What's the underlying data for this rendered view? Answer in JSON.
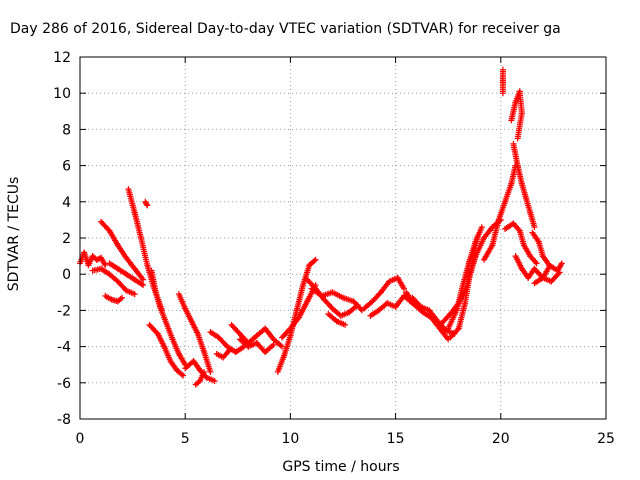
{
  "chart_data": {
    "type": "scatter",
    "title": "Day 286 of 2016, Sidereal Day-to-day VTEC variation (SDTVAR) for receiver ga",
    "xlabel": "GPS time / hours",
    "ylabel": "SDTVAR / TECUs",
    "xlim": [
      0,
      25
    ],
    "ylim": [
      -8,
      12
    ],
    "xticks": [
      "0",
      "5",
      "10",
      "15",
      "20",
      "25"
    ],
    "yticks": [
      "-8",
      "-6",
      "-4",
      "-2",
      "0",
      "2",
      "4",
      "6",
      "8",
      "10",
      "12"
    ],
    "grid": true,
    "marker": "+",
    "color": "#ff0000",
    "series": [
      {
        "name": "SDTVAR",
        "segments": [
          [
            [
              0.0,
              0.6
            ],
            [
              0.2,
              1.2
            ],
            [
              0.4,
              0.5
            ],
            [
              0.6,
              1.0
            ],
            [
              0.8,
              0.8
            ],
            [
              1.0,
              0.9
            ],
            [
              1.2,
              0.5
            ]
          ],
          [
            [
              1.0,
              2.9
            ],
            [
              1.4,
              2.4
            ],
            [
              1.8,
              1.6
            ],
            [
              2.2,
              0.9
            ],
            [
              2.6,
              0.3
            ],
            [
              3.0,
              -0.3
            ]
          ],
          [
            [
              0.6,
              0.2
            ],
            [
              1.0,
              0.3
            ],
            [
              1.4,
              0.0
            ],
            [
              1.8,
              -0.4
            ],
            [
              2.2,
              -0.9
            ],
            [
              2.6,
              -1.1
            ]
          ],
          [
            [
              1.2,
              -1.2
            ],
            [
              1.5,
              -1.4
            ],
            [
              1.8,
              -1.5
            ],
            [
              2.0,
              -1.3
            ]
          ],
          [
            [
              1.4,
              0.6
            ],
            [
              1.8,
              0.3
            ],
            [
              2.2,
              0.0
            ],
            [
              2.6,
              -0.3
            ],
            [
              3.0,
              -0.6
            ]
          ],
          [
            [
              2.3,
              4.7
            ],
            [
              2.6,
              3.4
            ],
            [
              2.9,
              2.0
            ],
            [
              3.2,
              0.5
            ],
            [
              3.5,
              -0.7
            ],
            [
              3.9,
              -2.0
            ]
          ],
          [
            [
              3.1,
              4.0
            ],
            [
              3.2,
              3.8
            ]
          ],
          [
            [
              3.4,
              0.2
            ],
            [
              3.6,
              -1.0
            ],
            [
              3.8,
              -1.8
            ],
            [
              4.1,
              -2.7
            ],
            [
              4.4,
              -3.6
            ],
            [
              4.7,
              -4.4
            ],
            [
              5.0,
              -5.0
            ]
          ],
          [
            [
              3.3,
              -2.8
            ],
            [
              3.7,
              -3.3
            ],
            [
              4.0,
              -4.0
            ],
            [
              4.3,
              -4.8
            ],
            [
              4.6,
              -5.3
            ],
            [
              4.9,
              -5.6
            ]
          ],
          [
            [
              4.7,
              -1.1
            ],
            [
              5.0,
              -1.9
            ],
            [
              5.3,
              -2.6
            ],
            [
              5.6,
              -3.3
            ],
            [
              5.9,
              -4.3
            ],
            [
              6.2,
              -5.4
            ]
          ],
          [
            [
              5.0,
              -5.2
            ],
            [
              5.4,
              -4.8
            ],
            [
              5.7,
              -5.3
            ],
            [
              6.0,
              -5.7
            ],
            [
              6.4,
              -5.9
            ]
          ],
          [
            [
              5.5,
              -6.1
            ],
            [
              5.7,
              -5.9
            ],
            [
              5.9,
              -5.4
            ]
          ],
          [
            [
              6.2,
              -3.2
            ],
            [
              6.6,
              -3.5
            ],
            [
              7.0,
              -4.0
            ],
            [
              7.4,
              -4.3
            ],
            [
              7.8,
              -4.0
            ]
          ],
          [
            [
              6.5,
              -4.4
            ],
            [
              6.8,
              -4.6
            ],
            [
              7.1,
              -4.2
            ]
          ],
          [
            [
              7.2,
              -2.8
            ],
            [
              7.6,
              -3.3
            ],
            [
              8.0,
              -3.8
            ],
            [
              8.4,
              -3.4
            ],
            [
              8.8,
              -3.0
            ],
            [
              9.2,
              -3.6
            ],
            [
              9.6,
              -4.0
            ]
          ],
          [
            [
              7.6,
              -3.6
            ],
            [
              8.0,
              -4.0
            ],
            [
              8.4,
              -3.8
            ],
            [
              8.8,
              -4.3
            ],
            [
              9.2,
              -3.9
            ]
          ],
          [
            [
              9.4,
              -5.4
            ],
            [
              9.7,
              -4.5
            ],
            [
              10.0,
              -3.4
            ],
            [
              10.3,
              -2.0
            ],
            [
              10.6,
              -0.6
            ],
            [
              10.9,
              0.5
            ],
            [
              11.2,
              0.8
            ]
          ],
          [
            [
              9.6,
              -3.5
            ],
            [
              10.0,
              -3.0
            ],
            [
              10.4,
              -2.4
            ],
            [
              10.8,
              -1.5
            ],
            [
              11.2,
              -0.6
            ]
          ],
          [
            [
              10.8,
              -0.3
            ],
            [
              11.2,
              -0.8
            ],
            [
              11.6,
              -1.4
            ],
            [
              12.0,
              -1.9
            ],
            [
              12.4,
              -2.3
            ],
            [
              12.8,
              -2.1
            ],
            [
              13.2,
              -1.7
            ]
          ],
          [
            [
              11.0,
              -0.8
            ],
            [
              11.5,
              -1.2
            ],
            [
              12.0,
              -1.0
            ],
            [
              12.5,
              -1.3
            ],
            [
              13.0,
              -1.5
            ],
            [
              13.4,
              -2.0
            ]
          ],
          [
            [
              11.8,
              -2.2
            ],
            [
              12.2,
              -2.6
            ],
            [
              12.6,
              -2.8
            ]
          ],
          [
            [
              13.5,
              -1.9
            ],
            [
              13.9,
              -1.5
            ],
            [
              14.3,
              -1.0
            ],
            [
              14.7,
              -0.4
            ],
            [
              15.1,
              -0.2
            ],
            [
              15.4,
              -0.8
            ]
          ],
          [
            [
              13.8,
              -2.3
            ],
            [
              14.2,
              -2.0
            ],
            [
              14.6,
              -1.6
            ],
            [
              15.0,
              -1.8
            ],
            [
              15.4,
              -1.2
            ],
            [
              15.8,
              -1.6
            ]
          ],
          [
            [
              15.5,
              -1.0
            ],
            [
              15.9,
              -1.7
            ],
            [
              16.3,
              -2.1
            ],
            [
              16.7,
              -2.4
            ],
            [
              17.1,
              -3.0
            ],
            [
              17.5,
              -3.6
            ]
          ],
          [
            [
              15.8,
              -1.3
            ],
            [
              16.2,
              -1.8
            ],
            [
              16.6,
              -2.0
            ],
            [
              17.0,
              -2.6
            ],
            [
              17.4,
              -3.1
            ],
            [
              17.8,
              -3.3
            ]
          ],
          [
            [
              17.2,
              -2.7
            ],
            [
              17.6,
              -2.2
            ],
            [
              18.0,
              -1.6
            ],
            [
              18.3,
              -0.9
            ],
            [
              18.6,
              0.2
            ],
            [
              18.8,
              1.0
            ]
          ],
          [
            [
              17.5,
              -3.0
            ],
            [
              17.9,
              -2.0
            ],
            [
              18.2,
              -0.6
            ],
            [
              18.5,
              0.7
            ],
            [
              18.8,
              1.8
            ],
            [
              19.1,
              2.6
            ]
          ],
          [
            [
              17.6,
              -3.5
            ],
            [
              18.0,
              -3.0
            ],
            [
              18.3,
              -1.6
            ],
            [
              18.5,
              -0.2
            ],
            [
              18.7,
              1.0
            ],
            [
              18.9,
              2.1
            ]
          ],
          [
            [
              18.4,
              -0.2
            ],
            [
              18.8,
              1.0
            ],
            [
              19.2,
              2.0
            ],
            [
              19.6,
              2.6
            ],
            [
              20.0,
              3.0
            ]
          ],
          [
            [
              19.2,
              0.8
            ],
            [
              19.6,
              1.6
            ],
            [
              19.9,
              3.0
            ],
            [
              20.2,
              4.0
            ],
            [
              20.5,
              5.0
            ],
            [
              20.7,
              6.0
            ]
          ],
          [
            [
              20.1,
              11.3
            ],
            [
              20.1,
              10.6
            ],
            [
              20.1,
              10.0
            ]
          ],
          [
            [
              20.5,
              8.5
            ],
            [
              20.7,
              9.5
            ],
            [
              20.9,
              10.1
            ],
            [
              21.0,
              8.9
            ],
            [
              20.8,
              7.5
            ]
          ],
          [
            [
              20.6,
              7.2
            ],
            [
              20.8,
              6.0
            ],
            [
              21.0,
              5.0
            ],
            [
              21.2,
              4.2
            ],
            [
              21.4,
              3.4
            ],
            [
              21.6,
              2.6
            ]
          ],
          [
            [
              20.2,
              2.5
            ],
            [
              20.6,
              2.8
            ],
            [
              20.9,
              2.4
            ],
            [
              21.1,
              1.6
            ],
            [
              21.4,
              1.0
            ],
            [
              21.7,
              0.6
            ]
          ],
          [
            [
              20.7,
              1.0
            ],
            [
              21.0,
              0.3
            ],
            [
              21.3,
              -0.2
            ],
            [
              21.6,
              0.3
            ],
            [
              22.0,
              -0.2
            ],
            [
              22.3,
              0.4
            ]
          ],
          [
            [
              21.5,
              2.3
            ],
            [
              21.8,
              1.8
            ],
            [
              22.0,
              1.0
            ],
            [
              22.3,
              0.5
            ],
            [
              22.7,
              0.2
            ],
            [
              22.9,
              0.6
            ]
          ],
          [
            [
              21.6,
              -0.5
            ],
            [
              22.0,
              -0.2
            ],
            [
              22.4,
              -0.4
            ],
            [
              22.8,
              0.1
            ]
          ]
        ]
      }
    ]
  }
}
